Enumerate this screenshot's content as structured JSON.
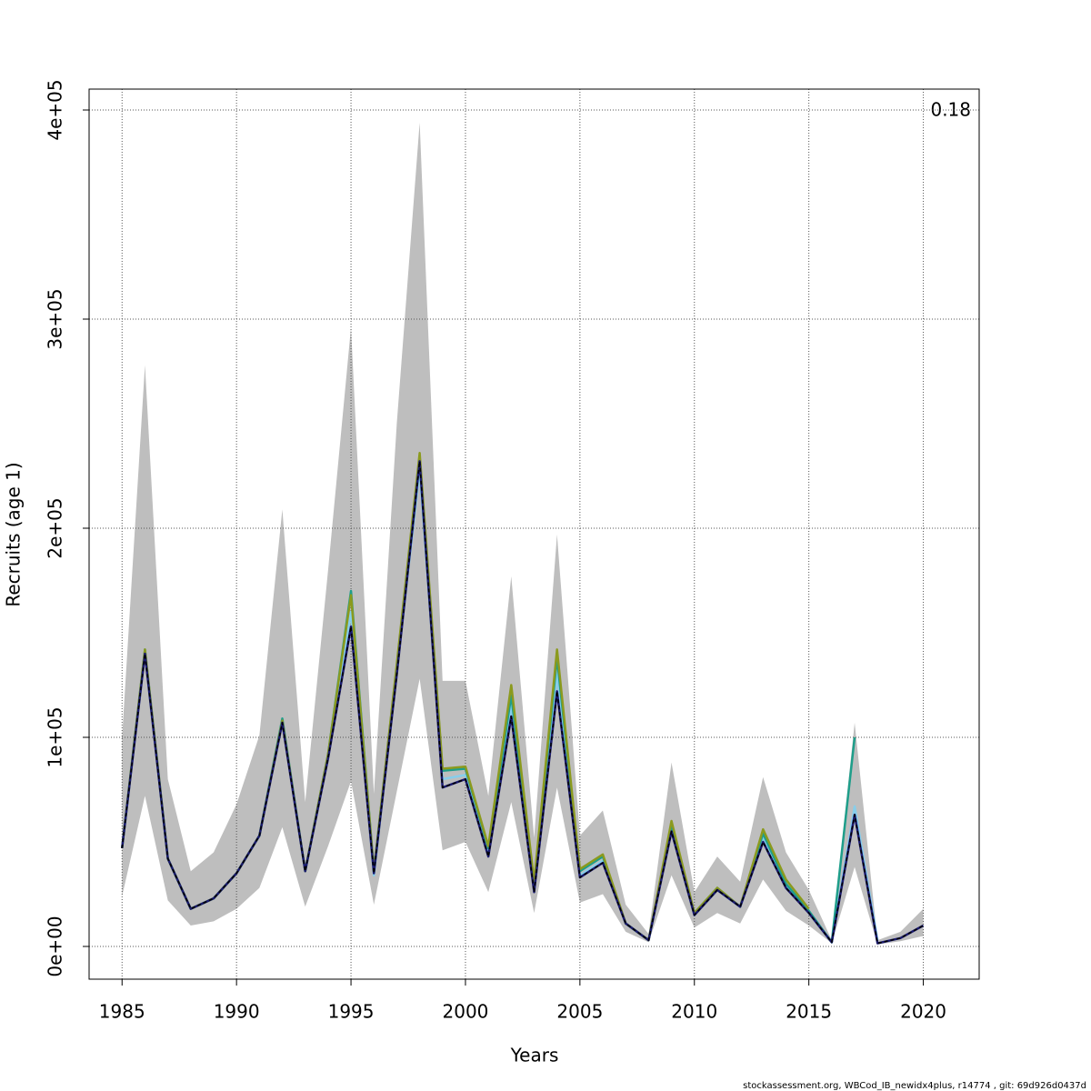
{
  "chart_data": {
    "type": "line",
    "x_label": "Years",
    "y_label": "Recruits (age 1)",
    "annotation": "0.18",
    "footer": "stockassessment.org, WBCod_IB_newidx4plus, r14774 , git: 69d926d0437d",
    "x": [
      1985,
      1986,
      1987,
      1988,
      1989,
      1990,
      1991,
      1992,
      1993,
      1994,
      1995,
      1996,
      1997,
      1998,
      1999,
      2000,
      2001,
      2002,
      2003,
      2004,
      2005,
      2006,
      2007,
      2008,
      2009,
      2010,
      2011,
      2012,
      2013,
      2014,
      2015,
      2016,
      2017,
      2018,
      2019,
      2020
    ],
    "band": {
      "color": "#bebebe",
      "lower": [
        24000,
        72000,
        22000,
        10000,
        12000,
        18000,
        28000,
        57000,
        19000,
        48000,
        79000,
        20000,
        74000,
        128000,
        46000,
        50000,
        26000,
        69000,
        16000,
        76000,
        21000,
        25000,
        7000,
        2000,
        34000,
        9000,
        16000,
        11000,
        32000,
        17000,
        10000,
        1500,
        38000,
        1000,
        2500,
        5000
      ],
      "upper": [
        100000,
        278000,
        80000,
        36000,
        45000,
        68000,
        101000,
        209000,
        69000,
        180000,
        296000,
        73000,
        250000,
        394000,
        127000,
        127000,
        72000,
        177000,
        52000,
        197000,
        53000,
        65000,
        20000,
        6000,
        88000,
        26000,
        43000,
        31000,
        81000,
        45000,
        27000,
        3000,
        107000,
        3000,
        7000,
        18000
      ]
    },
    "series": [
      {
        "color": "#1a1a6e",
        "dashed": true,
        "values": [
          47000,
          140000,
          42000,
          18000,
          23000,
          35000,
          53000,
          107000,
          36000,
          90000,
          153000,
          35000,
          130000,
          232000,
          76000,
          80000,
          43000,
          110000,
          26000,
          122000,
          33000,
          40000,
          11000,
          3000,
          55000,
          15000,
          27000,
          19000,
          50000,
          28000,
          16000,
          2000,
          63000,
          1500,
          4000,
          10000
        ]
      },
      {
        "color": "#87ceeb",
        "values": [
          47000,
          141000,
          42000,
          18000,
          23000,
          35000,
          53000,
          108000,
          36000,
          91000,
          160000,
          34000,
          132000,
          228000,
          80000,
          82000,
          45000,
          115000,
          28000,
          130000,
          34000,
          41000,
          11000,
          3000,
          56000,
          15000,
          27000,
          19000,
          52000,
          29000,
          16000,
          2000,
          67000,
          3000,
          null,
          null
        ]
      },
      {
        "color": "#1e9e8a",
        "values": [
          47000,
          142000,
          42000,
          18000,
          23000,
          35000,
          53000,
          109000,
          36000,
          92000,
          170000,
          36000,
          134000,
          234000,
          84000,
          85000,
          47000,
          120000,
          30000,
          138000,
          36000,
          43000,
          11000,
          3000,
          58000,
          16000,
          28000,
          19000,
          54000,
          30000,
          17000,
          2000,
          100000,
          null,
          null,
          null
        ]
      },
      {
        "color": "#8b9a1e",
        "values": [
          47000,
          142000,
          42000,
          18000,
          23000,
          35000,
          53000,
          108000,
          36000,
          92000,
          168000,
          36000,
          135000,
          236000,
          85000,
          86000,
          48000,
          125000,
          31000,
          142000,
          37000,
          44000,
          11000,
          3000,
          60000,
          16000,
          28000,
          19000,
          56000,
          32000,
          18000,
          null,
          null,
          null,
          null,
          null
        ]
      }
    ],
    "xlim": [
      1983.56,
      2022.44
    ],
    "ylim": [
      -15650,
      410000
    ],
    "xticks": [
      1985,
      1990,
      1995,
      2000,
      2005,
      2010,
      2015,
      2020
    ],
    "yticks": [
      {
        "value": 0,
        "label": "0e+00"
      },
      {
        "value": 100000,
        "label": "1e+05"
      },
      {
        "value": 200000,
        "label": "2e+05"
      },
      {
        "value": 300000,
        "label": "3e+05"
      },
      {
        "value": 400000,
        "label": "4e+05"
      }
    ],
    "grid": true
  }
}
